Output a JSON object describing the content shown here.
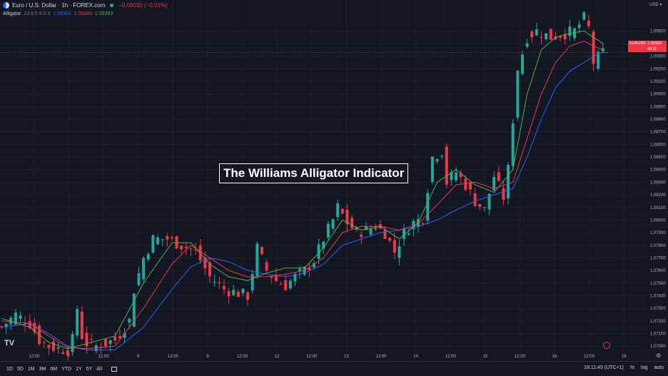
{
  "header": {
    "symbol_title": "Euro / U.S. Dollar · 1h · FOREX.com",
    "change": "−0.00010 (−0.01%)"
  },
  "indicator": {
    "name": "Alligator",
    "params": "13 8 5 8 5 3",
    "jaw_value": "1.09303",
    "teeth_value": "1.09389",
    "lips_value": "1.09393"
  },
  "annotation": "The Williams Alligator Indicator",
  "currency": "USD",
  "price_tag": {
    "pair": "EURUSD",
    "price": "1.09330",
    "countdown": "48:11"
  },
  "timeframes": [
    "1D",
    "5D",
    "1M",
    "3M",
    "6M",
    "YTD",
    "1Y",
    "5Y",
    "All"
  ],
  "footer": {
    "time": "18:11:49 (UTC+1)",
    "percent": "%",
    "log": "log",
    "auto": "auto"
  },
  "colors": {
    "up": "#26a69a",
    "down": "#f23645",
    "jaw": "#2962ff",
    "teeth": "#f23645",
    "lips": "#4caf50",
    "background": "#131722",
    "grid": "#1e222d"
  },
  "chart_data": {
    "type": "candlestick",
    "symbol": "EURUSD",
    "timeframe": "1h",
    "ylim": [
      1.0695,
      1.097
    ],
    "y_ticks": [
      "1.07000",
      "1.07100",
      "1.07200",
      "1.07300",
      "1.07400",
      "1.07500",
      "1.07600",
      "1.07700",
      "1.07800",
      "1.07900",
      "1.08000",
      "1.08100",
      "1.08200",
      "1.08300",
      "1.08400",
      "1.08500",
      "1.08600",
      "1.08700",
      "1.08800",
      "1.08900",
      "1.09000",
      "1.09100",
      "1.09200",
      "1.09300",
      "1.09400",
      "1.09500"
    ],
    "x_ticks": [
      "12:00",
      "7",
      "12:00",
      "8",
      "12:00",
      "9",
      "12:00",
      "12",
      "12:00",
      "13",
      "12:00",
      "14",
      "12:00",
      "15",
      "12:00",
      "16",
      "12:00",
      "19"
    ],
    "current_price": 1.0933,
    "price_path": [
      [
        0,
        1.0715
      ],
      [
        3,
        1.0725
      ],
      [
        6,
        1.0718
      ],
      [
        8,
        1.0705
      ],
      [
        10,
        1.07
      ],
      [
        12,
        1.0698
      ],
      [
        14,
        1.0697
      ],
      [
        15,
        1.0705
      ],
      [
        16,
        1.073
      ],
      [
        17,
        1.0708
      ],
      [
        18,
        1.0702
      ],
      [
        20,
        1.07
      ],
      [
        24,
        1.0705
      ],
      [
        27,
        1.072
      ],
      [
        28,
        1.0745
      ],
      [
        30,
        1.077
      ],
      [
        32,
        1.0785
      ],
      [
        35,
        1.0785
      ],
      [
        38,
        1.078
      ],
      [
        41,
        1.0775
      ],
      [
        44,
        1.0755
      ],
      [
        47,
        1.0745
      ],
      [
        50,
        1.0742
      ],
      [
        52,
        1.074
      ],
      [
        54,
        1.0778
      ],
      [
        56,
        1.076
      ],
      [
        58,
        1.0752
      ],
      [
        60,
        1.0748
      ],
      [
        62,
        1.0755
      ],
      [
        64,
        1.076
      ],
      [
        66,
        1.0768
      ],
      [
        68,
        1.0785
      ],
      [
        70,
        1.08
      ],
      [
        71,
        1.081
      ],
      [
        73,
        1.0798
      ],
      [
        75,
        1.079
      ],
      [
        77,
        1.0792
      ],
      [
        79,
        1.0795
      ],
      [
        81,
        1.079
      ],
      [
        83,
        1.0775
      ],
      [
        85,
        1.079
      ],
      [
        87,
        1.0798
      ],
      [
        89,
        1.0802
      ],
      [
        91,
        1.085
      ],
      [
        93,
        1.0855
      ],
      [
        94,
        1.083
      ],
      [
        96,
        1.0838
      ],
      [
        98,
        1.0828
      ],
      [
        100,
        1.0815
      ],
      [
        102,
        1.0808
      ],
      [
        104,
        1.0835
      ],
      [
        106,
        1.0818
      ],
      [
        107,
        1.084
      ],
      [
        108,
        1.088
      ],
      [
        109,
        1.092
      ],
      [
        111,
        1.0945
      ],
      [
        113,
        1.095
      ],
      [
        116,
        1.0945
      ],
      [
        119,
        1.0948
      ],
      [
        121,
        1.095
      ],
      [
        123,
        1.096
      ],
      [
        124,
        1.0952
      ],
      [
        125,
        1.0925
      ],
      [
        127,
        1.0933
      ]
    ],
    "jaw_path": [
      [
        0,
        1.0715
      ],
      [
        6,
        1.0718
      ],
      [
        10,
        1.071
      ],
      [
        14,
        1.07
      ],
      [
        18,
        1.0697
      ],
      [
        24,
        1.0697
      ],
      [
        30,
        1.0715
      ],
      [
        36,
        1.0745
      ],
      [
        40,
        1.0763
      ],
      [
        44,
        1.077
      ],
      [
        48,
        1.0767
      ],
      [
        52,
        1.076
      ],
      [
        56,
        1.0757
      ],
      [
        60,
        1.0755
      ],
      [
        64,
        1.0758
      ],
      [
        68,
        1.0765
      ],
      [
        72,
        1.078
      ],
      [
        76,
        1.0785
      ],
      [
        80,
        1.079
      ],
      [
        84,
        1.0792
      ],
      [
        88,
        1.0795
      ],
      [
        92,
        1.08
      ],
      [
        96,
        1.0808
      ],
      [
        100,
        1.0815
      ],
      [
        104,
        1.082
      ],
      [
        108,
        1.0825
      ],
      [
        111,
        1.085
      ],
      [
        114,
        1.088
      ],
      [
        117,
        1.0905
      ],
      [
        120,
        1.0918
      ],
      [
        123,
        1.0925
      ],
      [
        126,
        1.0932
      ],
      [
        128,
        1.0933
      ]
    ],
    "teeth_path": [
      [
        0,
        1.072
      ],
      [
        6,
        1.0718
      ],
      [
        10,
        1.0708
      ],
      [
        14,
        1.0699
      ],
      [
        18,
        1.0698
      ],
      [
        24,
        1.07
      ],
      [
        30,
        1.073
      ],
      [
        36,
        1.0765
      ],
      [
        40,
        1.078
      ],
      [
        44,
        1.077
      ],
      [
        48,
        1.076
      ],
      [
        52,
        1.0755
      ],
      [
        56,
        1.0755
      ],
      [
        60,
        1.0757
      ],
      [
        64,
        1.076
      ],
      [
        68,
        1.077
      ],
      [
        72,
        1.079
      ],
      [
        76,
        1.0795
      ],
      [
        80,
        1.0795
      ],
      [
        84,
        1.0792
      ],
      [
        88,
        1.0797
      ],
      [
        92,
        1.0812
      ],
      [
        96,
        1.0828
      ],
      [
        100,
        1.083
      ],
      [
        104,
        1.0825
      ],
      [
        108,
        1.083
      ],
      [
        111,
        1.0865
      ],
      [
        114,
        1.09
      ],
      [
        117,
        1.0925
      ],
      [
        120,
        1.0938
      ],
      [
        123,
        1.0942
      ],
      [
        125,
        1.0938
      ],
      [
        127,
        1.0935
      ]
    ],
    "lips_path": [
      [
        0,
        1.0722
      ],
      [
        6,
        1.0715
      ],
      [
        10,
        1.0703
      ],
      [
        14,
        1.0698
      ],
      [
        18,
        1.0702
      ],
      [
        24,
        1.0708
      ],
      [
        30,
        1.075
      ],
      [
        36,
        1.0782
      ],
      [
        40,
        1.0782
      ],
      [
        44,
        1.0765
      ],
      [
        48,
        1.0755
      ],
      [
        52,
        1.0752
      ],
      [
        56,
        1.0758
      ],
      [
        60,
        1.0762
      ],
      [
        64,
        1.0762
      ],
      [
        68,
        1.0778
      ],
      [
        72,
        1.08
      ],
      [
        76,
        1.0792
      ],
      [
        80,
        1.0795
      ],
      [
        84,
        1.0785
      ],
      [
        88,
        1.0798
      ],
      [
        92,
        1.083
      ],
      [
        96,
        1.084
      ],
      [
        100,
        1.0828
      ],
      [
        104,
        1.0822
      ],
      [
        108,
        1.084
      ],
      [
        111,
        1.09
      ],
      [
        114,
        1.0935
      ],
      [
        117,
        1.0945
      ],
      [
        120,
        1.0948
      ],
      [
        123,
        1.095
      ],
      [
        125,
        1.0945
      ],
      [
        127,
        1.094
      ]
    ]
  }
}
